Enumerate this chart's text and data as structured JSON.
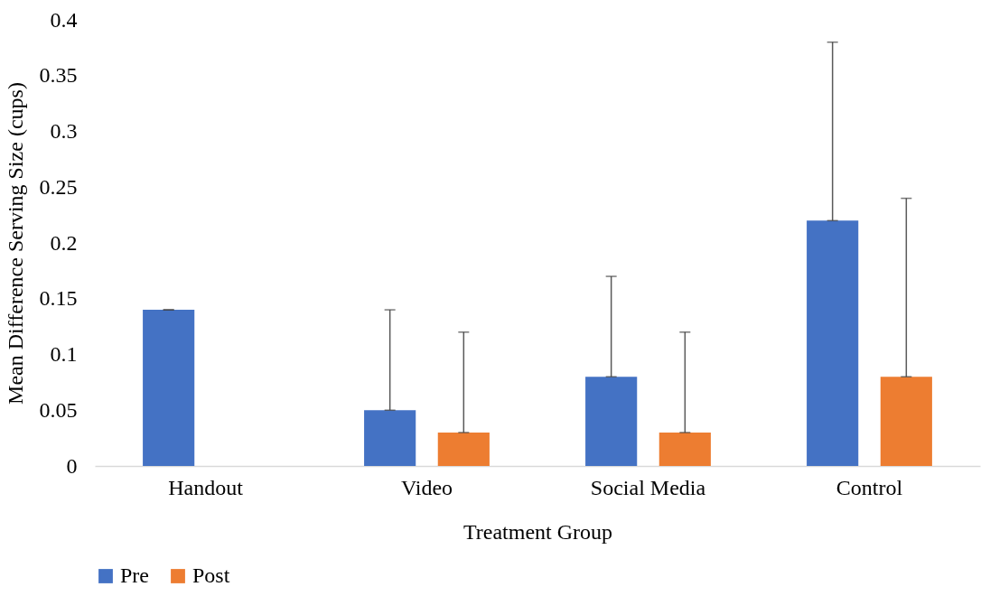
{
  "chart_data": {
    "type": "bar",
    "xlabel": "Treatment Group",
    "ylabel": "Mean Difference Serving Size (cups)",
    "categories": [
      "Handout",
      "Video",
      "Social Media",
      "Control"
    ],
    "series": [
      {
        "name": "Pre",
        "color": "#4472c4",
        "values": [
          0.14,
          0.05,
          0.08,
          0.22
        ],
        "errors": [
          [
            0.14,
            0.14
          ],
          [
            0.05,
            0.14
          ],
          [
            0.08,
            0.17
          ],
          [
            0.22,
            0.38
          ]
        ]
      },
      {
        "name": "Post",
        "color": "#ed7d31",
        "values": [
          0,
          0.03,
          0.03,
          0.08
        ],
        "errors": [
          [
            0,
            0
          ],
          [
            0.03,
            0.12
          ],
          [
            0.03,
            0.12
          ],
          [
            0.08,
            0.24
          ]
        ]
      }
    ],
    "ylim": [
      0,
      0.4
    ],
    "yticks": [
      0,
      0.05,
      0.1,
      0.15,
      0.2,
      0.25,
      0.3,
      0.35,
      0.4
    ],
    "grid": false,
    "legend": "bottom"
  }
}
